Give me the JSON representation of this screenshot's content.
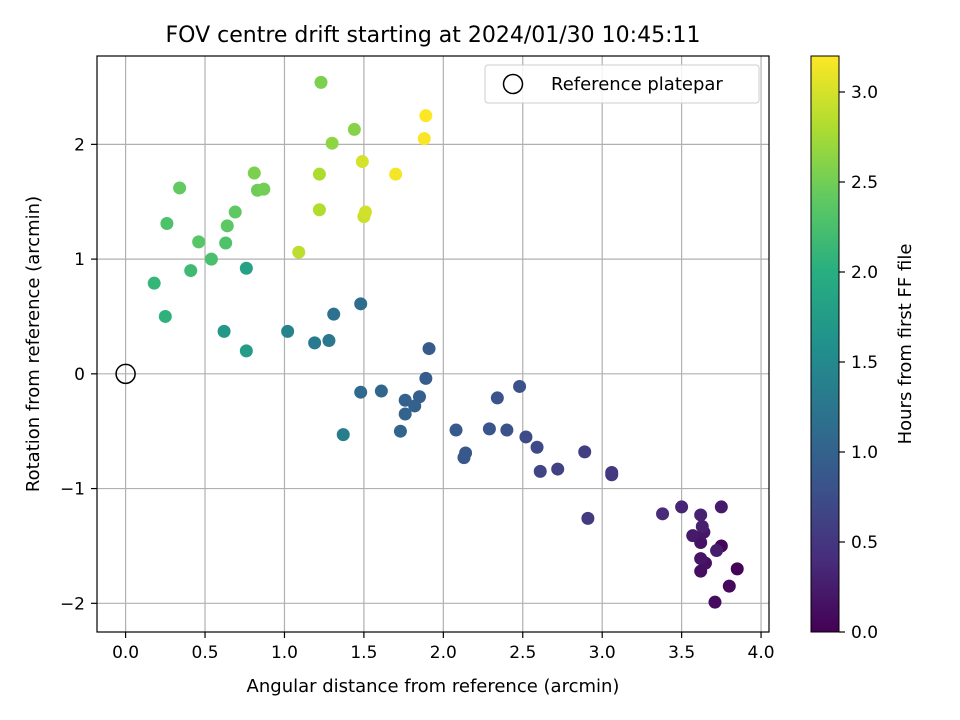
{
  "chart_data": {
    "type": "scatter",
    "title": "FOV centre drift starting at 2024/01/30 10:45:11",
    "xlabel": "Angular distance from reference (arcmin)",
    "ylabel": "Rotation from reference (arcmin)",
    "xlim": [
      -0.18,
      4.05
    ],
    "ylim": [
      -2.25,
      2.77
    ],
    "xticks": [
      0.0,
      0.5,
      1.0,
      1.5,
      2.0,
      2.5,
      3.0,
      3.5,
      4.0
    ],
    "xtick_labels": [
      "0.0",
      "0.5",
      "1.0",
      "1.5",
      "2.0",
      "2.5",
      "3.0",
      "3.5",
      "4.0"
    ],
    "yticks": [
      -2,
      -1,
      0,
      1,
      2
    ],
    "ytick_labels": [
      "−2",
      "−1",
      "0",
      "1",
      "2"
    ],
    "grid": true,
    "legend": {
      "position": "top-right",
      "entries": [
        "Reference platepar"
      ]
    },
    "reference_point": {
      "x": 0.0,
      "y": 0.0
    },
    "colorbar": {
      "label": "Hours from first FF file",
      "range": [
        0.0,
        3.2
      ],
      "ticks": [
        0.0,
        0.5,
        1.0,
        1.5,
        2.0,
        2.5,
        3.0
      ],
      "tick_labels": [
        "0.0",
        "0.5",
        "1.0",
        "1.5",
        "2.0",
        "2.5",
        "3.0"
      ],
      "colormap": "viridis"
    },
    "series": [
      {
        "points": [
          {
            "x": 3.85,
            "y": -1.7,
            "c": 0.03
          },
          {
            "x": 3.75,
            "y": -1.5,
            "c": 0.05
          },
          {
            "x": 3.8,
            "y": -1.85,
            "c": 0.08
          },
          {
            "x": 3.71,
            "y": -1.99,
            "c": 0.1
          },
          {
            "x": 3.62,
            "y": -1.72,
            "c": 0.12
          },
          {
            "x": 3.65,
            "y": -1.65,
            "c": 0.14
          },
          {
            "x": 3.62,
            "y": -1.47,
            "c": 0.16
          },
          {
            "x": 3.62,
            "y": -1.61,
            "c": 0.18
          },
          {
            "x": 3.64,
            "y": -1.38,
            "c": 0.2
          },
          {
            "x": 3.57,
            "y": -1.41,
            "c": 0.22
          },
          {
            "x": 3.75,
            "y": -1.16,
            "c": 0.24
          },
          {
            "x": 3.72,
            "y": -1.54,
            "c": 0.26
          },
          {
            "x": 3.63,
            "y": -1.33,
            "c": 0.28
          },
          {
            "x": 3.62,
            "y": -1.23,
            "c": 0.3
          },
          {
            "x": 3.5,
            "y": -1.16,
            "c": 0.33
          },
          {
            "x": 3.38,
            "y": -1.22,
            "c": 0.38
          },
          {
            "x": 3.06,
            "y": -0.88,
            "c": 0.5
          },
          {
            "x": 3.06,
            "y": -0.86,
            "c": 0.52
          },
          {
            "x": 2.91,
            "y": -1.26,
            "c": 0.55
          },
          {
            "x": 2.89,
            "y": -0.68,
            "c": 0.58
          },
          {
            "x": 2.72,
            "y": -0.83,
            "c": 0.62
          },
          {
            "x": 2.61,
            "y": -0.85,
            "c": 0.66
          },
          {
            "x": 2.59,
            "y": -0.64,
            "c": 0.7
          },
          {
            "x": 2.52,
            "y": -0.55,
            "c": 0.74
          },
          {
            "x": 2.48,
            "y": -0.11,
            "c": 0.78
          },
          {
            "x": 2.4,
            "y": -0.49,
            "c": 0.8
          },
          {
            "x": 2.34,
            "y": -0.21,
            "c": 0.82
          },
          {
            "x": 2.29,
            "y": -0.48,
            "c": 0.84
          },
          {
            "x": 2.14,
            "y": -0.69,
            "c": 0.86
          },
          {
            "x": 2.13,
            "y": -0.73,
            "c": 0.88
          },
          {
            "x": 2.08,
            "y": -0.49,
            "c": 0.9
          },
          {
            "x": 1.91,
            "y": 0.22,
            "c": 0.92
          },
          {
            "x": 1.89,
            "y": -0.04,
            "c": 0.94
          },
          {
            "x": 1.85,
            "y": -0.2,
            "c": 0.96
          },
          {
            "x": 1.82,
            "y": -0.28,
            "c": 0.98
          },
          {
            "x": 1.76,
            "y": -0.23,
            "c": 1.0
          },
          {
            "x": 1.76,
            "y": -0.35,
            "c": 1.02
          },
          {
            "x": 1.73,
            "y": -0.5,
            "c": 1.04
          },
          {
            "x": 1.61,
            "y": -0.15,
            "c": 1.06
          },
          {
            "x": 1.48,
            "y": -0.16,
            "c": 1.1
          },
          {
            "x": 1.48,
            "y": 0.61,
            "c": 1.14
          },
          {
            "x": 1.31,
            "y": 0.52,
            "c": 1.2
          },
          {
            "x": 1.28,
            "y": 0.29,
            "c": 1.26
          },
          {
            "x": 1.19,
            "y": 0.27,
            "c": 1.3
          },
          {
            "x": 1.37,
            "y": -0.53,
            "c": 1.34
          },
          {
            "x": 1.02,
            "y": 0.37,
            "c": 1.42
          },
          {
            "x": 0.62,
            "y": 0.37,
            "c": 1.7
          },
          {
            "x": 0.76,
            "y": 0.2,
            "c": 1.75
          },
          {
            "x": 0.76,
            "y": 0.92,
            "c": 1.82
          },
          {
            "x": 0.25,
            "y": 0.5,
            "c": 2.05
          },
          {
            "x": 0.18,
            "y": 0.79,
            "c": 2.1
          },
          {
            "x": 0.41,
            "y": 0.9,
            "c": 2.18
          },
          {
            "x": 0.54,
            "y": 1.0,
            "c": 2.25
          },
          {
            "x": 0.63,
            "y": 1.14,
            "c": 2.3
          },
          {
            "x": 0.26,
            "y": 1.31,
            "c": 2.28
          },
          {
            "x": 0.46,
            "y": 1.15,
            "c": 2.35
          },
          {
            "x": 0.64,
            "y": 1.29,
            "c": 2.38
          },
          {
            "x": 0.69,
            "y": 1.41,
            "c": 2.4
          },
          {
            "x": 0.34,
            "y": 1.62,
            "c": 2.42
          },
          {
            "x": 0.83,
            "y": 1.6,
            "c": 2.48
          },
          {
            "x": 0.87,
            "y": 1.61,
            "c": 2.5
          },
          {
            "x": 0.81,
            "y": 1.75,
            "c": 2.55
          },
          {
            "x": 1.23,
            "y": 2.54,
            "c": 2.55
          },
          {
            "x": 1.44,
            "y": 2.13,
            "c": 2.6
          },
          {
            "x": 1.3,
            "y": 2.01,
            "c": 2.65
          },
          {
            "x": 1.22,
            "y": 1.74,
            "c": 2.8
          },
          {
            "x": 1.22,
            "y": 1.43,
            "c": 2.82
          },
          {
            "x": 1.09,
            "y": 1.06,
            "c": 2.88
          },
          {
            "x": 1.5,
            "y": 1.37,
            "c": 2.95
          },
          {
            "x": 1.51,
            "y": 1.41,
            "c": 2.98
          },
          {
            "x": 1.49,
            "y": 1.85,
            "c": 3.0
          },
          {
            "x": 1.7,
            "y": 1.74,
            "c": 3.15
          },
          {
            "x": 1.88,
            "y": 2.05,
            "c": 3.18
          },
          {
            "x": 1.89,
            "y": 2.25,
            "c": 3.2
          }
        ]
      }
    ]
  }
}
